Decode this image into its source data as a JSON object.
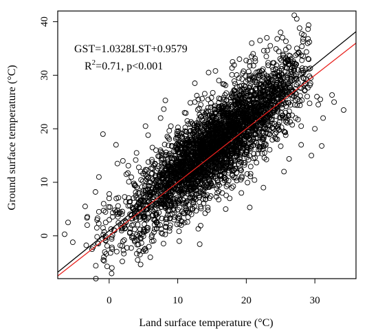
{
  "chart_data": {
    "type": "scatter",
    "xlabel": "Land surface temperature (°C)",
    "ylabel": "Ground surface temperature (°C)",
    "xlim": [
      -7.5,
      36
    ],
    "ylim": [
      -8,
      42
    ],
    "xticks": [
      0,
      10,
      20,
      30
    ],
    "yticks": [
      0,
      10,
      20,
      30,
      40
    ],
    "grid": false,
    "annotations": {
      "equation": "GST=1.0328LST+0.9579",
      "r2_prefix": "R",
      "r2_sup": "2",
      "r2_suffix": "=0.71, p<0.001"
    },
    "lines": [
      {
        "name": "",
        "type": "fit",
        "slope": 1.0328,
        "intercept": 0.9579,
        "color": "#000000"
      },
      {
        "name": "",
        "type": "1:1",
        "slope": 1.0,
        "intercept": 0.0,
        "color": "#e8211d"
      }
    ],
    "points": [
      [
        -6.5,
        0.3
      ],
      [
        -6.0,
        2.5
      ],
      [
        -5.3,
        -1.2
      ],
      [
        -3.5,
        5.5
      ],
      [
        -3.2,
        2.0
      ],
      [
        -2.5,
        -2.5
      ],
      [
        -2.0,
        8.2
      ],
      [
        -1.8,
        1.5
      ],
      [
        -1.5,
        4.5
      ],
      [
        -1.0,
        -0.5
      ],
      [
        -0.8,
        6.0
      ],
      [
        -1.5,
        11.0
      ],
      [
        -0.9,
        19.0
      ],
      [
        -0.5,
        2.5
      ],
      [
        0.0,
        7.0
      ],
      [
        0.2,
        -3.2
      ],
      [
        0.4,
        -6.0
      ],
      [
        1.0,
        17.0
      ],
      [
        1.2,
        13.5
      ],
      [
        1.5,
        4.2
      ],
      [
        2.0,
        14.0
      ],
      [
        2.5,
        11.5
      ],
      [
        3.0,
        0.5
      ],
      [
        4.0,
        15.5
      ],
      [
        4.5,
        -3.5
      ],
      [
        5.3,
        20.5
      ],
      [
        6.0,
        -4.0
      ],
      [
        6.3,
        16.5
      ],
      [
        7.5,
        22.0
      ],
      [
        8.2,
        25.3
      ],
      [
        9.0,
        20.5
      ],
      [
        9.5,
        3.5
      ],
      [
        10.0,
        8.5
      ],
      [
        10.5,
        2.0
      ],
      [
        11.0,
        23.0
      ],
      [
        12.0,
        4.0
      ],
      [
        12.5,
        25.0
      ],
      [
        12.5,
        28.5
      ],
      [
        13.0,
        1.3
      ],
      [
        13.0,
        25.5
      ],
      [
        14.0,
        7.5
      ],
      [
        14.5,
        30.5
      ],
      [
        15.5,
        30.8
      ],
      [
        16.0,
        29.0
      ],
      [
        16.5,
        8.0
      ],
      [
        17.0,
        5.0
      ],
      [
        18.0,
        32.5
      ],
      [
        19.0,
        33.0
      ],
      [
        20.5,
        5.3
      ],
      [
        20.8,
        36.0
      ],
      [
        21.0,
        34.0
      ],
      [
        22.0,
        36.5
      ],
      [
        22.5,
        9.0
      ],
      [
        23.0,
        37.0
      ],
      [
        23.5,
        35.5
      ],
      [
        24.5,
        36.8
      ],
      [
        25.0,
        38.0
      ],
      [
        25.5,
        12.0
      ],
      [
        26.0,
        30.0
      ],
      [
        26.5,
        33.0
      ],
      [
        27.0,
        41.2
      ],
      [
        27.2,
        22.0
      ],
      [
        27.5,
        31.0
      ],
      [
        28.0,
        20.5
      ],
      [
        28.3,
        29.5
      ],
      [
        28.0,
        17.0
      ],
      [
        29.0,
        36.8
      ],
      [
        29.2,
        36.2
      ],
      [
        29.5,
        15.0
      ],
      [
        30.0,
        20.0
      ],
      [
        30.3,
        26.0
      ],
      [
        30.5,
        24.5
      ],
      [
        30.8,
        25.5
      ],
      [
        31.0,
        16.8
      ],
      [
        31.2,
        22.0
      ],
      [
        32.5,
        26.3
      ],
      [
        32.8,
        25.0
      ],
      [
        34.2,
        23.5
      ]
    ],
    "cloud": {
      "n": 3400,
      "x_mean": 15.5,
      "x_sd": 6.5,
      "x_min": -3.5,
      "x_max": 29.5,
      "slope": 1.0328,
      "intercept": 0.9579,
      "resid_sd": 4.0
    }
  }
}
